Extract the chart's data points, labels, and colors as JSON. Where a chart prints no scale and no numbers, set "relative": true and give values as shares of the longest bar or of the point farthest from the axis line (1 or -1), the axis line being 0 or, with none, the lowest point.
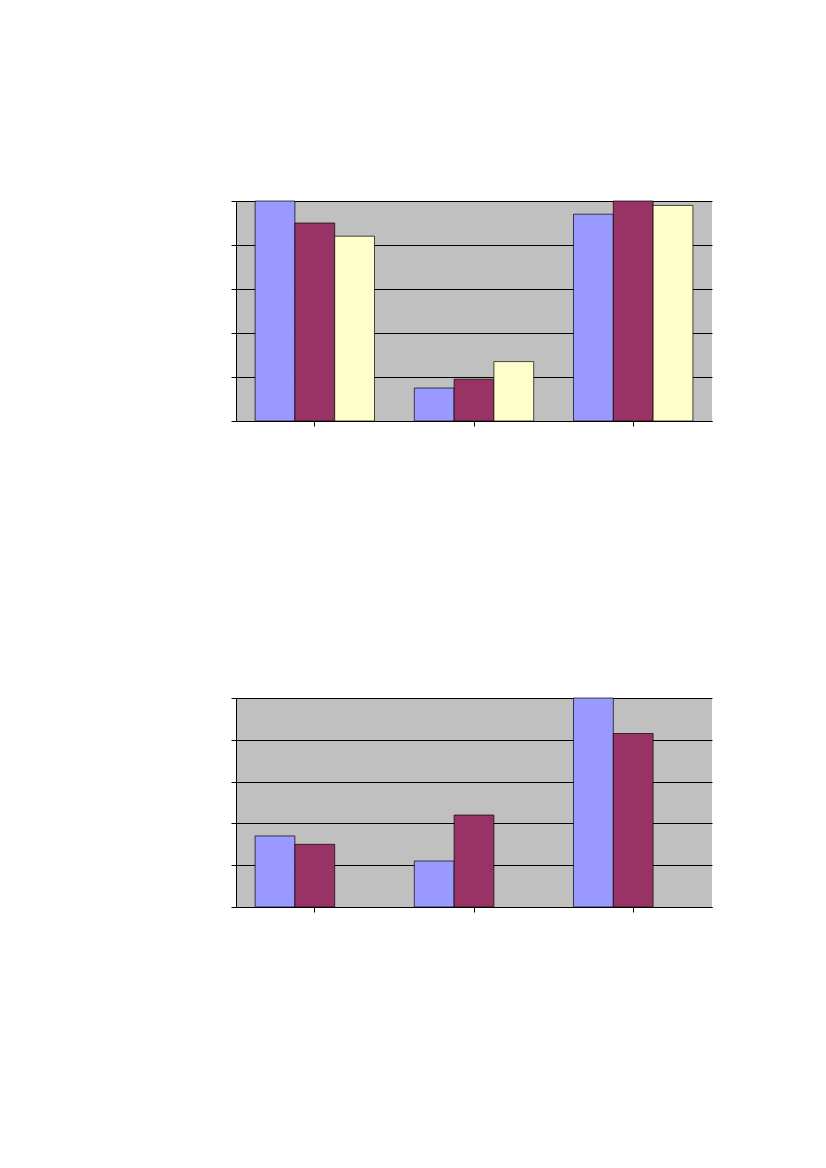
{
  "chart_data": [
    {
      "type": "bar",
      "relative": true,
      "categories": [
        null,
        null,
        null
      ],
      "series": [
        {
          "color": "#9999ff",
          "values": [
            1,
            0.15,
            0.94
          ]
        },
        {
          "color": "#993366",
          "values": [
            0.9,
            0.19,
            1
          ]
        },
        {
          "color": "#ffffcc",
          "values": [
            0.84,
            0.27,
            0.98
          ]
        }
      ],
      "grid": "y",
      "tick_labels": false
    },
    {
      "type": "bar",
      "relative": true,
      "categories": [
        null,
        null,
        null
      ],
      "series": [
        {
          "color": "#9999ff",
          "values": [
            0.34,
            0.22,
            1
          ]
        },
        {
          "color": "#993366",
          "values": [
            0.3,
            0.44,
            0.83
          ]
        }
      ],
      "grid": "y",
      "tick_labels": false
    }
  ]
}
